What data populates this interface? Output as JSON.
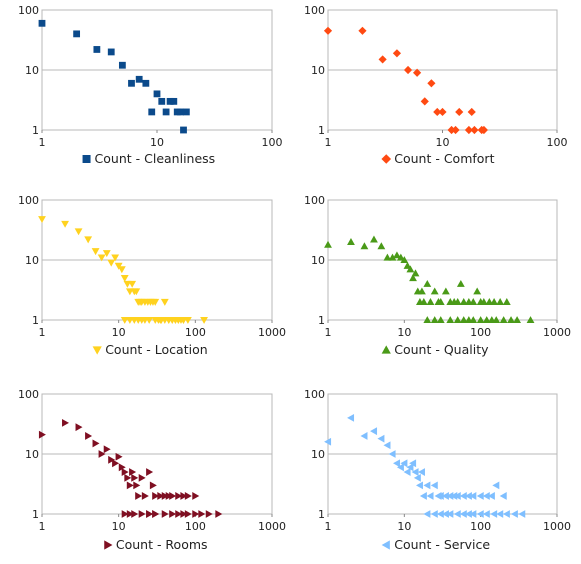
{
  "chart_data": [
    {
      "type": "scatter",
      "scale": "log-log",
      "xlim": [
        1,
        100
      ],
      "ylim": [
        1,
        100
      ],
      "x_ticks": [
        "1",
        "10",
        "100"
      ],
      "y_ticks": [
        "1",
        "10",
        "100"
      ],
      "legend": "bottom",
      "marker": "square",
      "color": "#0b4a8b",
      "series": [
        {
          "name": "Count - Cleanliness",
          "x": [
            1,
            2,
            3,
            4,
            5,
            6,
            7,
            8,
            9,
            10,
            11,
            12,
            13,
            14,
            15,
            16,
            17,
            18
          ],
          "y": [
            60,
            40,
            22,
            20,
            12,
            6,
            7,
            6,
            2,
            4,
            3,
            2,
            3,
            3,
            2,
            2,
            1,
            2
          ]
        }
      ]
    },
    {
      "type": "scatter",
      "scale": "log-log",
      "xlim": [
        1,
        100
      ],
      "ylim": [
        1,
        100
      ],
      "x_ticks": [
        "1",
        "10",
        "100"
      ],
      "y_ticks": [
        "1",
        "10",
        "100"
      ],
      "legend": "bottom",
      "marker": "diamond",
      "color": "#ff4a12",
      "series": [
        {
          "name": "Count - Comfort",
          "x": [
            1,
            2,
            3,
            4,
            5,
            6,
            7,
            8,
            9,
            10,
            12,
            13,
            14,
            17,
            18,
            19,
            22,
            23
          ],
          "y": [
            45,
            45,
            15,
            19,
            10,
            9,
            3,
            6,
            2,
            2,
            1,
            1,
            2,
            1,
            2,
            1,
            1,
            1
          ]
        }
      ]
    },
    {
      "type": "scatter",
      "scale": "log-log",
      "xlim": [
        1,
        1000
      ],
      "ylim": [
        1,
        100
      ],
      "x_ticks": [
        "1",
        "10",
        "100",
        "1000"
      ],
      "y_ticks": [
        "1",
        "10",
        "100"
      ],
      "legend": "bottom",
      "marker": "triangle-down",
      "color": "#ffd21f",
      "series": [
        {
          "name": "Count - Location",
          "x": [
            1,
            2,
            3,
            4,
            5,
            6,
            7,
            8,
            9,
            10,
            11,
            12,
            13,
            14,
            15,
            16,
            17,
            18,
            19,
            20,
            22,
            24,
            26,
            28,
            30,
            35,
            40,
            45,
            50,
            55,
            60,
            65,
            70,
            80,
            130,
            12,
            14,
            16,
            18,
            20,
            22,
            25,
            30,
            33,
            36,
            40,
            45,
            50,
            55,
            60,
            70
          ],
          "y": [
            48,
            40,
            30,
            22,
            14,
            11,
            13,
            9,
            11,
            8,
            7,
            5,
            4,
            3,
            4,
            3,
            3,
            2,
            2,
            2,
            2,
            2,
            2,
            2,
            2,
            1,
            2,
            1,
            1,
            1,
            1,
            1,
            1,
            1,
            1,
            1,
            1,
            1,
            1,
            1,
            1,
            1,
            1,
            1,
            1,
            1,
            1,
            1,
            1,
            1,
            1
          ]
        }
      ]
    },
    {
      "type": "scatter",
      "scale": "log-log",
      "xlim": [
        1,
        1000
      ],
      "ylim": [
        1,
        100
      ],
      "x_ticks": [
        "1",
        "10",
        "100",
        "1000"
      ],
      "y_ticks": [
        "1",
        "10",
        "100"
      ],
      "legend": "bottom",
      "marker": "triangle-up",
      "color": "#4a9a18",
      "series": [
        {
          "name": "Count - Quality",
          "x": [
            1,
            2,
            3,
            4,
            5,
            6,
            7,
            8,
            9,
            10,
            11,
            12,
            13,
            14,
            15,
            16,
            17,
            18,
            20,
            22,
            25,
            28,
            30,
            35,
            40,
            45,
            50,
            55,
            60,
            70,
            80,
            90,
            100,
            110,
            130,
            150,
            180,
            220,
            20,
            25,
            30,
            40,
            50,
            60,
            70,
            80,
            100,
            120,
            140,
            160,
            200,
            250,
            300,
            450
          ],
          "y": [
            18,
            20,
            17,
            22,
            17,
            11,
            11,
            12,
            11,
            10,
            8,
            7,
            5,
            6,
            3,
            2,
            3,
            2,
            4,
            2,
            3,
            2,
            2,
            3,
            2,
            2,
            2,
            4,
            2,
            2,
            2,
            3,
            2,
            2,
            2,
            2,
            2,
            2,
            1,
            1,
            1,
            1,
            1,
            1,
            1,
            1,
            1,
            1,
            1,
            1,
            1,
            1,
            1,
            1
          ]
        }
      ]
    },
    {
      "type": "scatter",
      "scale": "log-log",
      "xlim": [
        1,
        1000
      ],
      "ylim": [
        1,
        100
      ],
      "x_ticks": [
        "1",
        "10",
        "100",
        "1000"
      ],
      "y_ticks": [
        "1",
        "10",
        "100"
      ],
      "legend": "bottom",
      "marker": "triangle-right",
      "color": "#7f0f22",
      "series": [
        {
          "name": "Count - Rooms",
          "x": [
            1,
            2,
            3,
            4,
            5,
            6,
            7,
            8,
            9,
            10,
            11,
            12,
            13,
            14,
            15,
            16,
            17,
            18,
            20,
            22,
            25,
            28,
            30,
            35,
            40,
            45,
            50,
            60,
            70,
            80,
            100,
            12,
            14,
            16,
            20,
            25,
            30,
            40,
            50,
            60,
            70,
            80,
            100,
            120,
            150,
            200,
            25,
            30
          ],
          "y": [
            21,
            33,
            28,
            20,
            15,
            10,
            12,
            8,
            7,
            9,
            6,
            5,
            4,
            3,
            5,
            4,
            3,
            2,
            4,
            2,
            5,
            3,
            2,
            2,
            2,
            2,
            2,
            2,
            2,
            2,
            2,
            1,
            1,
            1,
            1,
            1,
            1,
            1,
            1,
            1,
            1,
            1,
            1,
            1,
            1,
            1,
            1,
            1
          ]
        }
      ]
    },
    {
      "type": "scatter",
      "scale": "log-log",
      "xlim": [
        1,
        1000
      ],
      "ylim": [
        1,
        100
      ],
      "x_ticks": [
        "1",
        "10",
        "100",
        "1000"
      ],
      "y_ticks": [
        "1",
        "10",
        "100"
      ],
      "legend": "bottom",
      "marker": "triangle-left",
      "color": "#7fbfff",
      "series": [
        {
          "name": "Count - Service",
          "x": [
            1,
            2,
            3,
            4,
            5,
            6,
            7,
            8,
            9,
            10,
            11,
            12,
            13,
            14,
            15,
            16,
            17,
            18,
            20,
            22,
            25,
            28,
            30,
            35,
            40,
            45,
            50,
            60,
            70,
            80,
            100,
            120,
            140,
            160,
            200,
            20,
            25,
            30,
            35,
            40,
            50,
            60,
            70,
            80,
            100,
            120,
            150,
            180,
            220,
            280,
            350
          ],
          "y": [
            16,
            40,
            20,
            24,
            18,
            14,
            10,
            7,
            6,
            7,
            5,
            6,
            7,
            5,
            4,
            3,
            5,
            2,
            3,
            2,
            3,
            2,
            2,
            2,
            2,
            2,
            2,
            2,
            2,
            2,
            2,
            2,
            2,
            3,
            2,
            1,
            1,
            1,
            1,
            1,
            1,
            1,
            1,
            1,
            1,
            1,
            1,
            1,
            1,
            1,
            1
          ]
        }
      ]
    }
  ]
}
